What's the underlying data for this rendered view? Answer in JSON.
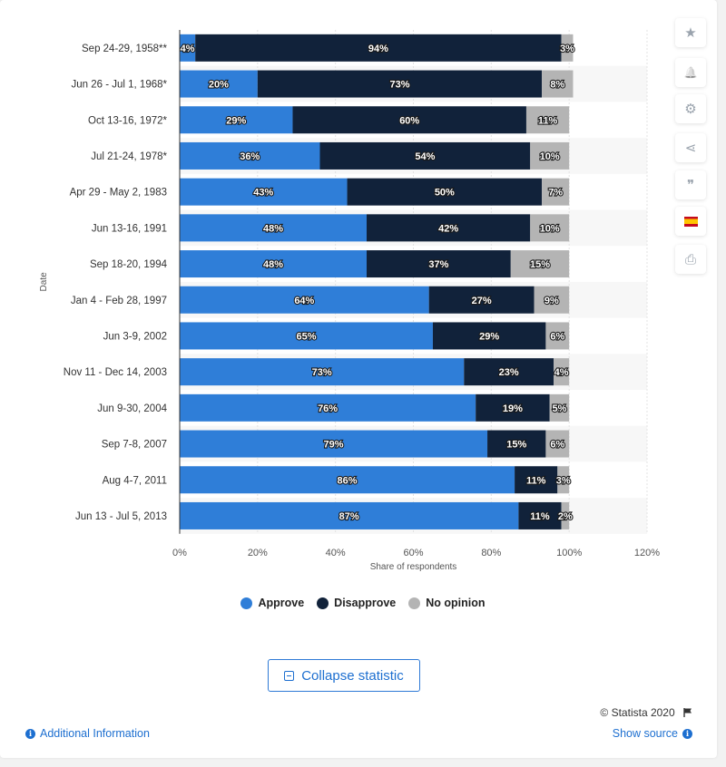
{
  "chart_data": {
    "type": "bar",
    "orientation": "horizontal",
    "stacked": true,
    "categories": [
      "Sep 24-29, 1958**",
      "Jun 26 - Jul 1, 1968*",
      "Oct 13-16, 1972*",
      "Jul 21-24, 1978*",
      "Apr 29 - May 2, 1983",
      "Jun 13-16, 1991",
      "Sep 18-20, 1994",
      "Jan 4 - Feb 28, 1997",
      "Jun 3-9, 2002",
      "Nov 11 - Dec 14, 2003",
      "Jun 9-30, 2004",
      "Sep 7-8, 2007",
      "Aug 4-7, 2011",
      "Jun 13 - Jul 5, 2013"
    ],
    "series": [
      {
        "name": "Approve",
        "color": "#2f7ed8",
        "values": [
          4,
          20,
          29,
          36,
          43,
          48,
          48,
          64,
          65,
          73,
          76,
          79,
          86,
          87
        ]
      },
      {
        "name": "Disapprove",
        "color": "#11223a",
        "values": [
          94,
          73,
          60,
          54,
          50,
          42,
          37,
          27,
          29,
          23,
          19,
          15,
          11,
          11
        ]
      },
      {
        "name": "No opinion",
        "color": "#b4b4b4",
        "values": [
          3,
          8,
          11,
          10,
          7,
          10,
          15,
          9,
          6,
          4,
          5,
          6,
          3,
          2
        ]
      }
    ],
    "value_labels": [
      [
        "4%",
        "20%",
        "29%",
        "36%",
        "43%",
        "48%",
        "48%",
        "64%",
        "65%",
        "73%",
        "76%",
        "79%",
        "86%",
        "87%"
      ],
      [
        "94%",
        "73%",
        "60%",
        "54%",
        "50%",
        "42%",
        "37%",
        "27%",
        "29%",
        "23%",
        "19%",
        "15%",
        "11%",
        "11%"
      ],
      [
        "3%",
        "8%",
        "11%",
        "10%",
        "7%",
        "10%",
        "15%",
        "9%",
        "6%",
        "4%",
        "5%",
        "6%",
        "3%",
        "2%"
      ]
    ],
    "xlim": [
      0,
      120
    ],
    "xticks": [
      0,
      20,
      40,
      60,
      80,
      100,
      120
    ],
    "xtick_labels": [
      "0%",
      "20%",
      "40%",
      "60%",
      "80%",
      "100%",
      "120%"
    ],
    "xlabel": "Share of respondents",
    "ylabel": "Date",
    "grid": true,
    "legend_position": "bottom"
  },
  "sidebar": {
    "buttons": [
      {
        "icon": "star-icon",
        "glyph": "★"
      },
      {
        "icon": "bell-icon",
        "glyph": "🔔"
      },
      {
        "icon": "gear-icon",
        "glyph": "⚙"
      },
      {
        "icon": "share-icon",
        "glyph": "⋖"
      },
      {
        "icon": "quote-icon",
        "glyph": "❞"
      },
      {
        "icon": "flag-icon",
        "glyph": ""
      },
      {
        "icon": "print-icon",
        "glyph": "⎙"
      }
    ]
  },
  "collapse_label": "Collapse statistic",
  "copyright": "© Statista 2020",
  "additional_info": "Additional Information",
  "show_source": "Show source"
}
